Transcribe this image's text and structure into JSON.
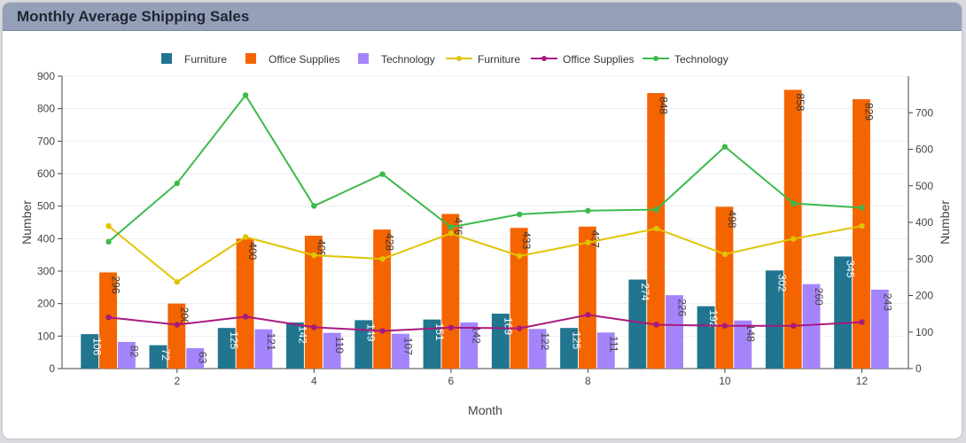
{
  "header": {
    "title": "Monthly Average Shipping Sales"
  },
  "chart_data": {
    "type": "bar",
    "title": "Monthly Average Shipping Sales",
    "xlabel": "Month",
    "ylabel": "Number",
    "y2label": "Number",
    "x": [
      1,
      2,
      3,
      4,
      5,
      6,
      7,
      8,
      9,
      10,
      11,
      12
    ],
    "x_ticks": [
      2,
      4,
      6,
      8,
      10,
      12
    ],
    "xlim": [
      0.32,
      12.68
    ],
    "ylim": [
      0,
      900
    ],
    "y_ticks": [
      0,
      100,
      200,
      300,
      400,
      500,
      600,
      700,
      800,
      900
    ],
    "y2lim": [
      0,
      800
    ],
    "y2_ticks": [
      0,
      100,
      200,
      300,
      400,
      500,
      600,
      700
    ],
    "grid": true,
    "legend_position": "top",
    "bar_series": [
      {
        "name": "Furniture",
        "color": "#21758f",
        "values": [
          106,
          72,
          125,
          142,
          149,
          151,
          169,
          125,
          274,
          192,
          302,
          345
        ]
      },
      {
        "name": "Office Supplies",
        "color": "#f46400",
        "values": [
          296,
          200,
          400,
          409,
          428,
          476,
          433,
          437,
          848,
          498,
          858,
          829
        ]
      },
      {
        "name": "Technology",
        "color": "#a484fb",
        "values": [
          82,
          63,
          121,
          110,
          107,
          142,
          122,
          111,
          226,
          148,
          260,
          243
        ]
      }
    ],
    "line_series": [
      {
        "name": "Furniture",
        "color": "#e0c400",
        "axis": "right",
        "values": [
          390,
          237,
          360,
          310,
          300,
          370,
          308,
          345,
          383,
          313,
          355,
          390
        ]
      },
      {
        "name": "Office Supplies",
        "color": "#a8197f",
        "axis": "right",
        "values": [
          140,
          120,
          142,
          113,
          103,
          112,
          110,
          147,
          120,
          117,
          117,
          127
        ]
      },
      {
        "name": "Technology",
        "color": "#3cba4c",
        "axis": "right",
        "values": [
          347,
          507,
          748,
          445,
          532,
          387,
          422,
          432,
          435,
          607,
          452,
          440
        ]
      }
    ]
  }
}
